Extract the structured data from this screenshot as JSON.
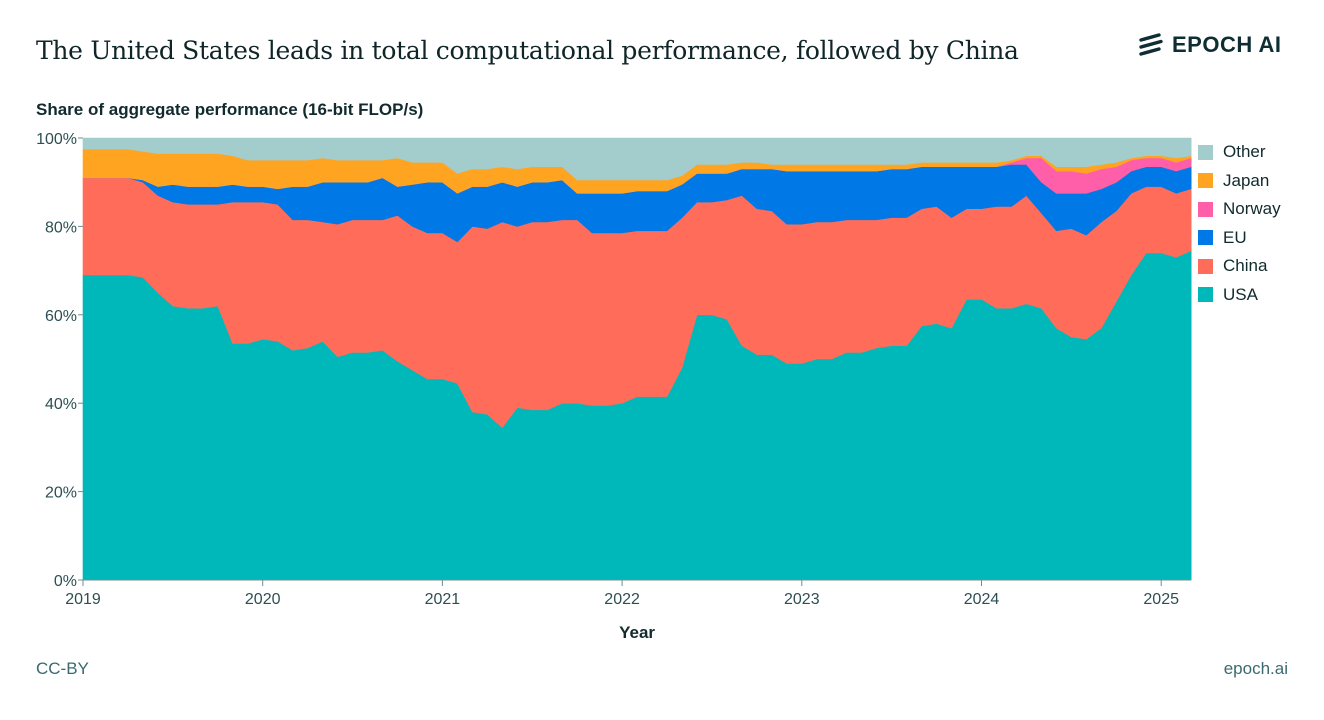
{
  "header": {
    "title": "The United States leads in total computational performance, followed by China",
    "logo_text": "EPOCH AI"
  },
  "footer": {
    "license": "CC-BY",
    "site": "epoch.ai"
  },
  "chart_data": {
    "type": "area",
    "stacked": true,
    "title": "The United States leads in total computational performance, followed by China",
    "ylabel": "Share of aggregate performance (16-bit FLOP/s)",
    "xlabel": "Year",
    "ylim": [
      0,
      100
    ],
    "xlim": [
      "2019-01",
      "2025-03"
    ],
    "yticks": [
      "0%",
      "20%",
      "40%",
      "60%",
      "80%",
      "100%"
    ],
    "xticks": [
      "2019",
      "2020",
      "2021",
      "2022",
      "2023",
      "2024",
      "2025"
    ],
    "grid": false,
    "legend_placement": "right",
    "x": [
      "2019-01",
      "2019-02",
      "2019-03",
      "2019-04",
      "2019-05",
      "2019-06",
      "2019-07",
      "2019-08",
      "2019-09",
      "2019-10",
      "2019-11",
      "2019-12",
      "2020-01",
      "2020-02",
      "2020-03",
      "2020-04",
      "2020-05",
      "2020-06",
      "2020-07",
      "2020-08",
      "2020-09",
      "2020-10",
      "2020-11",
      "2020-12",
      "2021-01",
      "2021-02",
      "2021-03",
      "2021-04",
      "2021-05",
      "2021-06",
      "2021-07",
      "2021-08",
      "2021-09",
      "2021-10",
      "2021-11",
      "2021-12",
      "2022-01",
      "2022-02",
      "2022-03",
      "2022-04",
      "2022-05",
      "2022-06",
      "2022-07",
      "2022-08",
      "2022-09",
      "2022-10",
      "2022-11",
      "2022-12",
      "2023-01",
      "2023-02",
      "2023-03",
      "2023-04",
      "2023-05",
      "2023-06",
      "2023-07",
      "2023-08",
      "2023-09",
      "2023-10",
      "2023-11",
      "2023-12",
      "2024-01",
      "2024-02",
      "2024-03",
      "2024-04",
      "2024-05",
      "2024-06",
      "2024-07",
      "2024-08",
      "2024-09",
      "2024-10",
      "2024-11",
      "2024-12",
      "2025-01",
      "2025-02",
      "2025-03"
    ],
    "series": [
      {
        "name": "USA",
        "color": "#00b8b9",
        "values": [
          69,
          69,
          69,
          69,
          68.5,
          65,
          62,
          61.5,
          61.5,
          62,
          53.5,
          53.5,
          54.5,
          54,
          52,
          52.5,
          54,
          50.5,
          51.5,
          51.5,
          52,
          49.5,
          47.5,
          45.5,
          45.5,
          44.5,
          38,
          37.5,
          34.5,
          39,
          38.5,
          38.5,
          40,
          40,
          39.5,
          39.5,
          40,
          41.5,
          41.5,
          41.5,
          48,
          60,
          60,
          59,
          53,
          51,
          51,
          49,
          49,
          50,
          50,
          51.5,
          51.5,
          52.5,
          53,
          53,
          57.5,
          58,
          57,
          63.5,
          63.5,
          61.5,
          61.5,
          62.5,
          61.5,
          57,
          55,
          54.5,
          57,
          63,
          69,
          74,
          74,
          73,
          74.5
        ]
      },
      {
        "name": "China",
        "color": "#ff6d5a",
        "values": [
          22,
          22,
          22,
          22,
          21.5,
          22,
          23.5,
          23.5,
          23.5,
          23,
          32,
          32,
          31,
          31,
          29.5,
          29,
          27,
          30,
          30,
          30,
          29.5,
          33,
          32.5,
          33,
          33,
          32,
          42,
          42,
          46.5,
          41,
          42.5,
          42.5,
          41.5,
          41.5,
          39,
          39,
          38.5,
          37.5,
          37.5,
          37.5,
          34,
          25.5,
          25.5,
          27,
          34,
          33,
          32.5,
          31.5,
          31.5,
          31,
          31,
          30,
          30,
          29,
          29,
          29,
          26.5,
          26.5,
          25,
          20.5,
          20.5,
          23,
          23,
          24.5,
          21.5,
          22,
          24.5,
          23.5,
          24,
          20.5,
          18.5,
          15,
          15,
          14.5,
          14
        ]
      },
      {
        "name": "EU",
        "color": "#0079e6",
        "values": [
          0,
          0,
          0,
          0,
          0.5,
          2,
          4,
          4,
          4,
          4,
          4,
          3.5,
          3.5,
          3.5,
          7.5,
          7.5,
          9,
          9.5,
          8.5,
          8.5,
          9.5,
          6.5,
          9.5,
          11.5,
          11.5,
          11,
          9,
          9.5,
          9,
          9,
          9,
          9,
          9,
          6,
          9,
          9,
          9,
          9,
          9,
          9,
          7.5,
          6.5,
          6.5,
          6,
          6,
          9,
          9.5,
          12,
          12,
          11.5,
          11.5,
          11,
          11,
          11,
          11,
          11,
          9.5,
          9,
          11.5,
          9.5,
          9.5,
          9,
          9.5,
          7,
          7,
          8.5,
          8,
          9.5,
          7.5,
          6.5,
          5,
          4.5,
          4.5,
          5,
          5
        ]
      },
      {
        "name": "Norway",
        "color": "#ff5fa8",
        "values": [
          0,
          0,
          0,
          0,
          0,
          0,
          0,
          0,
          0,
          0,
          0,
          0,
          0,
          0,
          0,
          0,
          0,
          0,
          0,
          0,
          0,
          0,
          0,
          0,
          0,
          0,
          0,
          0,
          0,
          0,
          0,
          0,
          0,
          0,
          0,
          0,
          0,
          0,
          0,
          0,
          0,
          0,
          0,
          0,
          0,
          0,
          0,
          0,
          0,
          0,
          0,
          0,
          0,
          0,
          0,
          0,
          0,
          0,
          0,
          0,
          0,
          0,
          0.5,
          1.5,
          5.5,
          5,
          5,
          4.5,
          4.5,
          3.5,
          2.5,
          2,
          2,
          2,
          2
        ]
      },
      {
        "name": "Japan",
        "color": "#ffa420",
        "values": [
          6.5,
          6.5,
          6.5,
          6.5,
          6.5,
          7.5,
          7,
          7.5,
          7.5,
          7.5,
          6.5,
          6,
          6,
          6.5,
          6,
          6,
          5.5,
          5,
          5,
          5,
          4,
          6.5,
          5,
          4.5,
          4.5,
          4.5,
          4,
          4,
          3.5,
          4,
          3.5,
          3.5,
          3,
          3,
          3,
          3,
          3,
          2.5,
          2.5,
          2.5,
          2,
          2,
          2,
          2,
          1.5,
          1.5,
          1,
          1.5,
          1.5,
          1.5,
          1.5,
          1.5,
          1.5,
          1.5,
          1,
          1,
          1,
          1,
          1,
          1,
          1,
          1,
          0.5,
          0.5,
          0.5,
          1,
          1,
          1.5,
          1,
          1,
          0.5,
          0.5,
          0.5,
          1,
          0.5
        ]
      },
      {
        "name": "Other",
        "color": "#a3cdcd",
        "values": [
          2.5,
          2.5,
          2.5,
          2.5,
          3,
          3.5,
          3.5,
          3.5,
          3.5,
          3.5,
          4,
          5,
          5,
          5,
          5,
          5,
          4.5,
          5,
          5,
          5,
          5,
          4.5,
          5.5,
          5.5,
          5.5,
          8,
          7,
          7,
          6.5,
          7,
          6.5,
          6.5,
          6.5,
          9.5,
          9.5,
          9.5,
          9.5,
          9.5,
          9.5,
          9.5,
          8.5,
          6,
          6,
          6,
          5.5,
          5.5,
          6,
          6,
          6,
          6,
          6,
          6,
          6,
          6,
          6,
          6,
          5.5,
          5.5,
          5.5,
          5.5,
          5.5,
          5.5,
          5,
          4,
          4,
          6.5,
          6.5,
          6.5,
          6,
          5.5,
          4.5,
          4,
          4,
          4.5,
          4
        ]
      }
    ],
    "legend_order": [
      "Other",
      "Japan",
      "Norway",
      "EU",
      "China",
      "USA"
    ]
  }
}
